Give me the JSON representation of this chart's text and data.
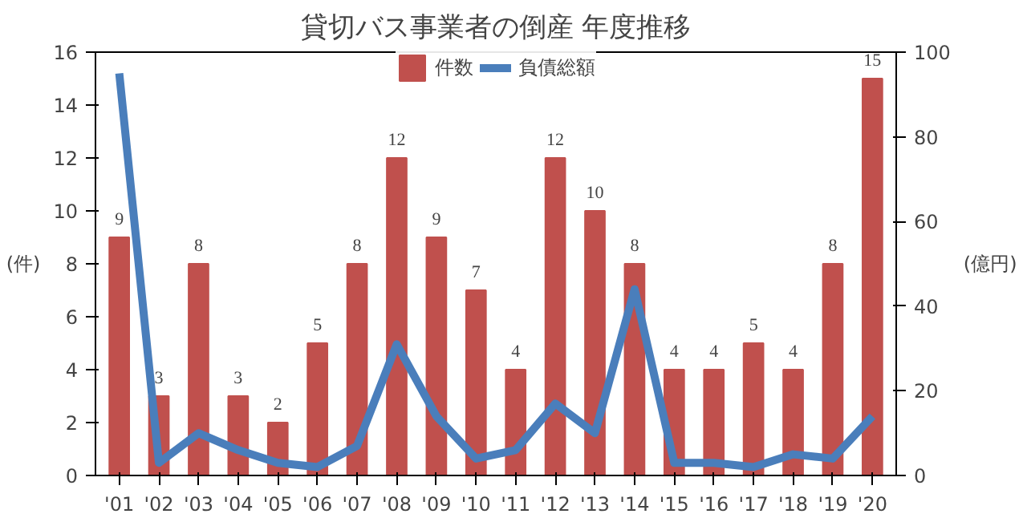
{
  "chart_data": {
    "type": "bar",
    "title": "貸切バス事業者の倒産 年度推移",
    "ylabel": "(件)",
    "y2label": "(億円)",
    "categories": [
      "'01",
      "'02",
      "'03",
      "'04",
      "'05",
      "'06",
      "'07",
      "'08",
      "'09",
      "'10",
      "'11",
      "'12",
      "'13",
      "'14",
      "'15",
      "'16",
      "'17",
      "'18",
      "'19",
      "'20"
    ],
    "series": [
      {
        "name": "件数",
        "color": "#c0504d",
        "data_labels": true,
        "values": [
          9,
          3,
          8,
          3,
          2,
          5,
          8,
          12,
          9,
          7,
          4,
          12,
          10,
          8,
          4,
          4,
          5,
          4,
          8,
          15
        ]
      },
      {
        "name": "負債総額",
        "type": "line",
        "axis": "y2",
        "color": "#4a7ebb",
        "values": [
          95,
          3,
          10,
          6,
          3,
          2,
          7,
          31,
          14,
          4,
          6,
          17,
          10,
          44,
          3,
          3,
          2,
          5,
          4,
          14
        ]
      }
    ],
    "ylim": [
      0,
      16
    ],
    "yticks": [
      0,
      2,
      4,
      6,
      8,
      10,
      12,
      14,
      16
    ],
    "y2lim": [
      0,
      100
    ],
    "y2ticks": [
      0,
      20,
      40,
      60,
      80,
      100
    ],
    "legend": "top",
    "grid": false
  }
}
